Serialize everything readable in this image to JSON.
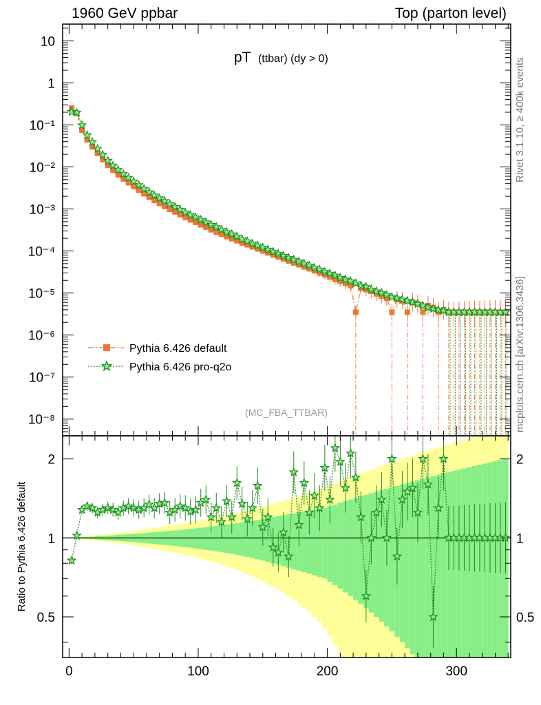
{
  "header": {
    "left": "1960 GeV ppbar",
    "right": "Top (parton level)"
  },
  "side_labels": {
    "rivet": "Rivet 3.1.10, ≥ 400k events",
    "mcplots": "mcplots.cern.ch [arXiv:1306.3436]"
  },
  "colors": {
    "default": "#ee7733",
    "pro_q2o": "#228822",
    "band_inner": "#88ee88",
    "band_outer": "#ffff99"
  },
  "chart_data": {
    "type": "line",
    "title": "pT",
    "title_sub": "(ttbar) (dy > 0)",
    "analysis_name": "(MC_FBA_TTBAR)",
    "xlim": [
      -5,
      342
    ],
    "x_ticks": [
      0,
      100,
      200,
      300
    ],
    "main_panel": {
      "yscale": "log",
      "ylim": [
        4e-09,
        25
      ],
      "y_tick_labels": [
        "10",
        "1",
        "10⁻¹",
        "10⁻²",
        "10⁻³",
        "10⁻⁴",
        "10⁻⁵",
        "10⁻⁶",
        "10⁻⁷",
        "10⁻⁸"
      ],
      "y_tick_values": [
        10,
        1,
        0.1,
        0.01,
        0.001,
        0.0001,
        1e-05,
        1e-06,
        1e-07,
        1e-08
      ]
    },
    "ratio_panel": {
      "yscale": "log",
      "ylabel": "Ratio to Pythia 6.426 default",
      "ylim": [
        0.35,
        2.45
      ],
      "y_tick_labels": [
        "0.5",
        "1",
        "2"
      ],
      "y_tick_values": [
        0.5,
        1,
        2
      ],
      "reference": 1
    },
    "legend": {
      "position": "lower-left",
      "entries": [
        "Pythia 6.426 default",
        "Pythia 6.426 pro-q2o"
      ]
    },
    "x": [
      2,
      6,
      10,
      14,
      18,
      22,
      26,
      30,
      34,
      38,
      42,
      46,
      50,
      54,
      58,
      62,
      66,
      70,
      74,
      78,
      82,
      86,
      90,
      94,
      98,
      102,
      106,
      110,
      114,
      118,
      122,
      126,
      130,
      134,
      138,
      142,
      146,
      150,
      154,
      158,
      162,
      166,
      170,
      174,
      178,
      182,
      186,
      190,
      194,
      198,
      202,
      206,
      210,
      214,
      218,
      222,
      226,
      230,
      234,
      238,
      242,
      246,
      250,
      254,
      258,
      262,
      266,
      270,
      274,
      278,
      282,
      286,
      290,
      294,
      298,
      302,
      306,
      310,
      314,
      318,
      322,
      326,
      330,
      334,
      338
    ],
    "series": [
      {
        "name": "Pythia 6.426 default",
        "marker": "square",
        "values": [
          0.25,
          0.19,
          0.075,
          0.044,
          0.03,
          0.021,
          0.015,
          0.011,
          0.0083,
          0.0065,
          0.0052,
          0.0042,
          0.0034,
          0.0028,
          0.0023,
          0.0019,
          0.0016,
          0.00135,
          0.00115,
          0.00098,
          0.00085,
          0.00073,
          0.00063,
          0.00055,
          0.00048,
          0.00042,
          0.00037,
          0.00032,
          0.00028,
          0.00025,
          0.00022,
          0.000195,
          0.000175,
          0.000155,
          0.00014,
          0.000125,
          0.000112,
          0.0001,
          9e-05,
          8e-05,
          7.2e-05,
          6.5e-05,
          5.8e-05,
          5.2e-05,
          4.7e-05,
          4.2e-05,
          3.8e-05,
          3.4e-05,
          3e-05,
          2.7e-05,
          2.4e-05,
          2.1e-05,
          1.9e-05,
          1.7e-05,
          1.5e-05,
          3.5e-06,
          1.3e-05,
          1.2e-05,
          1.1e-05,
          9.5e-06,
          8.5e-06,
          7.5e-06,
          3.5e-06,
          7e-06,
          6.5e-06,
          3.5e-06,
          6e-06,
          5.5e-06,
          3.5e-06,
          5e-06,
          4.5e-06,
          3.5e-06,
          4e-06,
          3.5e-06,
          3.5e-06,
          3.5e-06,
          3.5e-06,
          3.5e-06,
          3.5e-06,
          3.5e-06,
          3.5e-06,
          3.5e-06,
          3.5e-06,
          3.5e-06,
          3.5e-06
        ]
      },
      {
        "name": "Pythia 6.426 pro-q2o",
        "marker": "star",
        "values": [
          0.205,
          0.195,
          0.098,
          0.057,
          0.039,
          0.027,
          0.0195,
          0.014,
          0.0108,
          0.0085,
          0.0068,
          0.0055,
          0.0045,
          0.0037,
          0.003,
          0.0025,
          0.0021,
          0.0018,
          0.00155,
          0.0013,
          0.00112,
          0.00096,
          0.00082,
          0.00072,
          0.00063,
          0.00055,
          0.00048,
          0.00042,
          0.00037,
          0.00032,
          0.00028,
          0.00025,
          0.00022,
          0.00019,
          0.00017,
          0.00015,
          0.000135,
          0.00012,
          0.000108,
          9.6e-05,
          8.6e-05,
          7.7e-05,
          6.9e-05,
          6.2e-05,
          5.6e-05,
          5e-05,
          4.5e-05,
          4e-05,
          3.6e-05,
          3.2e-05,
          2.9e-05,
          2.6e-05,
          2.3e-05,
          2.1e-05,
          1.9e-05,
          1.7e-05,
          1.5e-05,
          1.4e-05,
          1.2e-05,
          1.1e-05,
          1e-05,
          9e-06,
          8e-06,
          7.5e-06,
          7e-06,
          6.5e-06,
          6e-06,
          5.5e-06,
          5e-06,
          4.5e-06,
          4.2e-06,
          4e-06,
          3.8e-06,
          3.5e-06,
          3.5e-06,
          3.5e-06,
          3.5e-06,
          3.5e-06,
          3.5e-06,
          3.5e-06,
          3.5e-06,
          3.5e-06,
          3.5e-06,
          3.5e-06,
          3.5e-06
        ]
      }
    ],
    "ratio_values": [
      0.82,
      1.02,
      1.28,
      1.32,
      1.3,
      1.25,
      1.28,
      1.3,
      1.28,
      1.25,
      1.3,
      1.32,
      1.3,
      1.28,
      1.3,
      1.34,
      1.3,
      1.35,
      1.36,
      1.25,
      1.28,
      1.32,
      1.3,
      1.26,
      1.28,
      1.36,
      1.4,
      1.2,
      1.3,
      1.15,
      1.38,
      1.2,
      1.62,
      1.35,
      1.18,
      1.3,
      1.58,
      1.1,
      1.2,
      0.92,
      0.88,
      1.05,
      0.85,
      1.78,
      1.12,
      1.62,
      1.25,
      1.45,
      1.3,
      1.85,
      1.4,
      2.2,
      1.95,
      1.55,
      2.1,
      1.7,
      1.2,
      0.6,
      1.0,
      1.25,
      1.4,
      1.0,
      2.0,
      0.85,
      1.4,
      1.5,
      1.55,
      1.25,
      2.0,
      1.6,
      0.5,
      1.3,
      2.0,
      1.0,
      1.0,
      1.0,
      1.0,
      1.0,
      1.0,
      1.0,
      1.0,
      1.0,
      1.0,
      1.0,
      1.0
    ],
    "uncertainty_band": {
      "inner_half_width": [
        0.002,
        0.005,
        0.007,
        0.009,
        0.011,
        0.014,
        0.017,
        0.02,
        0.023,
        0.026,
        0.029,
        0.032,
        0.036,
        0.04,
        0.044,
        0.048,
        0.052,
        0.056,
        0.06,
        0.064,
        0.068,
        0.073,
        0.078,
        0.083,
        0.088,
        0.093,
        0.099,
        0.105,
        0.111,
        0.117,
        0.124,
        0.131,
        0.138,
        0.146,
        0.154,
        0.162,
        0.171,
        0.18,
        0.19,
        0.2,
        0.21,
        0.22,
        0.23,
        0.24,
        0.25,
        0.26,
        0.27,
        0.28,
        0.29,
        0.3,
        0.32,
        0.34,
        0.36,
        0.38,
        0.4,
        0.42,
        0.44,
        0.46,
        0.48,
        0.5,
        0.52,
        0.54,
        0.56,
        0.58,
        0.6,
        0.62,
        0.64,
        0.66,
        0.68,
        0.7,
        0.72,
        0.74,
        0.76,
        0.78,
        0.8,
        0.82,
        0.84,
        0.86,
        0.88,
        0.9,
        0.92,
        0.94,
        0.96,
        0.98,
        1.0
      ],
      "outer_half_width": [
        0.004,
        0.009,
        0.013,
        0.017,
        0.021,
        0.026,
        0.031,
        0.036,
        0.041,
        0.046,
        0.052,
        0.058,
        0.064,
        0.071,
        0.078,
        0.085,
        0.092,
        0.099,
        0.107,
        0.115,
        0.123,
        0.131,
        0.14,
        0.149,
        0.158,
        0.168,
        0.178,
        0.188,
        0.199,
        0.21,
        0.222,
        0.234,
        0.247,
        0.26,
        0.274,
        0.288,
        0.303,
        0.318,
        0.334,
        0.35,
        0.367,
        0.384,
        0.402,
        0.42,
        0.44,
        0.46,
        0.48,
        0.5,
        0.52,
        0.55,
        0.58,
        0.61,
        0.64,
        0.67,
        0.7,
        0.73,
        0.76,
        0.79,
        0.82,
        0.85,
        0.88,
        0.91,
        0.94,
        0.97,
        1.0,
        1.03,
        1.06,
        1.09,
        1.12,
        1.15,
        1.18,
        1.21,
        1.24,
        1.27,
        1.3,
        1.33,
        1.36,
        1.39,
        1.42,
        1.45,
        1.48,
        1.51,
        1.54,
        1.57,
        1.6
      ]
    }
  }
}
